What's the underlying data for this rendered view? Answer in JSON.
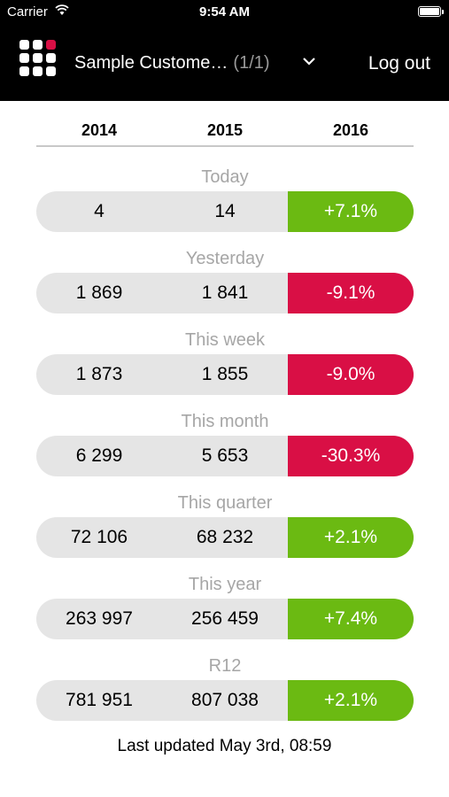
{
  "status_bar": {
    "carrier": "Carrier",
    "time": "9:54 AM"
  },
  "nav": {
    "title": "Sample Custome…",
    "count": "(1/1)",
    "logout_label": "Log out"
  },
  "years": [
    "2014",
    "2015",
    "2016"
  ],
  "rows": [
    {
      "label": "Today",
      "v2014": "4",
      "v2015": "14",
      "change": "+7.1%",
      "trend": "pos"
    },
    {
      "label": "Yesterday",
      "v2014": "1 869",
      "v2015": "1 841",
      "change": "-9.1%",
      "trend": "neg"
    },
    {
      "label": "This week",
      "v2014": "1 873",
      "v2015": "1 855",
      "change": "-9.0%",
      "trend": "neg"
    },
    {
      "label": "This month",
      "v2014": "6 299",
      "v2015": "5 653",
      "change": "-30.3%",
      "trend": "neg"
    },
    {
      "label": "This quarter",
      "v2014": "72 106",
      "v2015": "68 232",
      "change": "+2.1%",
      "trend": "pos"
    },
    {
      "label": "This year",
      "v2014": "263 997",
      "v2015": "256 459",
      "change": "+7.4%",
      "trend": "pos"
    },
    {
      "label": "R12",
      "v2014": "781 951",
      "v2015": "807 038",
      "change": "+2.1%",
      "trend": "pos"
    }
  ],
  "footer": {
    "last_updated": "Last updated May 3rd, 08:59"
  },
  "colors": {
    "positive": "#6bba12",
    "negative": "#d90f45",
    "accent_dot": "#d90f45"
  },
  "icons": {
    "menu": "app-grid-icon",
    "dropdown": "chevron-down-icon",
    "wifi": "wifi-icon",
    "battery": "battery-icon"
  }
}
